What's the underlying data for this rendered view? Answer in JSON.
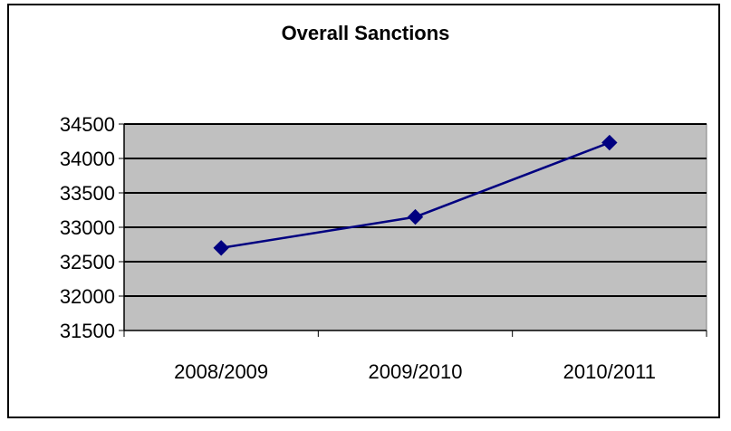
{
  "chart_data": {
    "type": "line",
    "title": "Overall Sanctions",
    "categories": [
      "2008/2009",
      "2009/2010",
      "2010/2011"
    ],
    "series": [
      {
        "values": [
          32700,
          33150,
          34230
        ]
      }
    ],
    "ylim": [
      31500,
      34500
    ],
    "yticks": [
      31500,
      32000,
      32500,
      33000,
      33500,
      34000,
      34500
    ],
    "ytick_labels": [
      "31500",
      "32000",
      "32500",
      "33000",
      "33500",
      "34000",
      "34500"
    ],
    "grid": true,
    "legend": "none",
    "colors": {
      "line": "#000080",
      "plot_bg": "#c0c0c0",
      "grid": "#000000"
    }
  }
}
